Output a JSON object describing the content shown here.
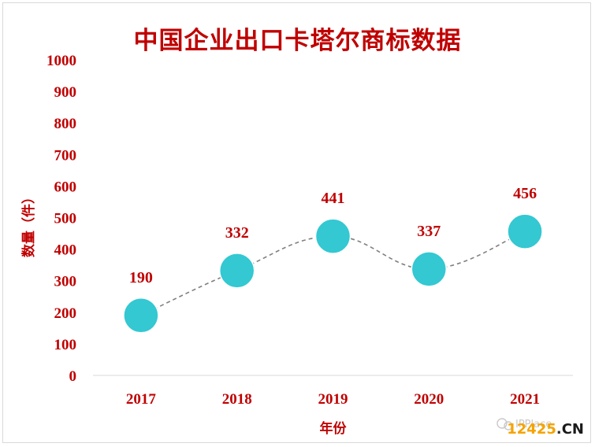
{
  "chart_data": {
    "type": "line",
    "title": "中国企业出口卡塔尔商标数据",
    "categories": [
      "2017",
      "2018",
      "2019",
      "2020",
      "2021"
    ],
    "values": [
      190,
      332,
      441,
      337,
      456
    ],
    "xlabel": "年份",
    "ylabel": "数量（件）",
    "ylim": [
      0,
      1000
    ],
    "yticks": [
      "0",
      "100",
      "200",
      "300",
      "400",
      "500",
      "600",
      "700",
      "800",
      "900",
      "1000"
    ],
    "grid": false,
    "legend": "none",
    "line_style": "dashed smooth",
    "colors": {
      "text": "#c00000",
      "marker": "#33c8d2",
      "line": "#808080"
    }
  },
  "watermark": {
    "account": "IPPlace",
    "site_num": "12425",
    "site_dot": ".",
    "site_cn": "CN"
  }
}
